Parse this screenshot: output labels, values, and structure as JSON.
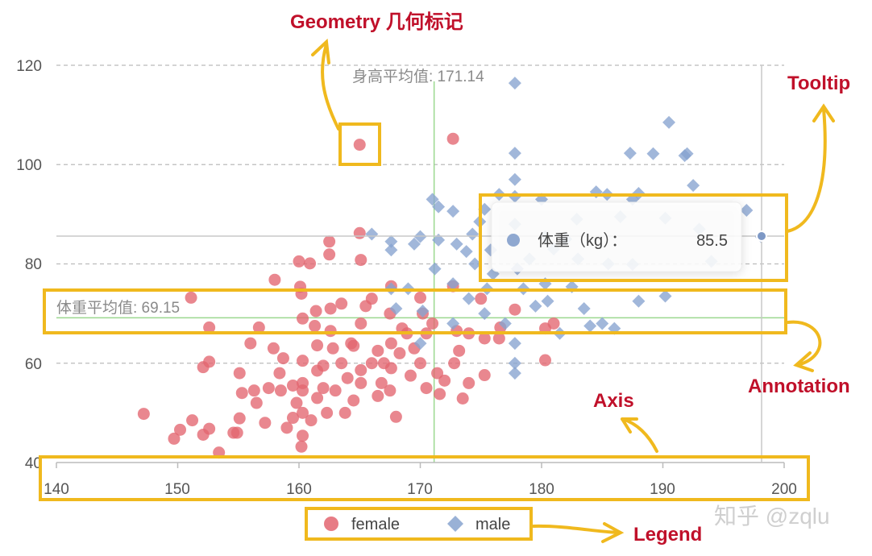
{
  "chart_data": {
    "type": "scatter",
    "xlim": [
      140,
      200
    ],
    "ylim": [
      40,
      120
    ],
    "x_ticks": [
      "140",
      "150",
      "160",
      "170",
      "180",
      "190",
      "200"
    ],
    "y_ticks": [
      "40",
      "60",
      "80",
      "100",
      "120"
    ],
    "grid": "horizontal dashed",
    "legend_position": "bottom",
    "series": [
      {
        "name": "female",
        "color": "#e36570",
        "marker": "circle",
        "points": [
          [
            147.2,
            49.8
          ],
          [
            149.7,
            44.8
          ],
          [
            150.2,
            46.6
          ],
          [
            151.2,
            48.5
          ],
          [
            151.1,
            73.2
          ],
          [
            152.1,
            59.2
          ],
          [
            152.1,
            45.6
          ],
          [
            152.6,
            46.8
          ],
          [
            152.6,
            67.2
          ],
          [
            152.6,
            60.3
          ],
          [
            153.4,
            42
          ],
          [
            154.6,
            46
          ],
          [
            155.1,
            58
          ],
          [
            155.3,
            54
          ],
          [
            155.1,
            48.9
          ],
          [
            154.9,
            46
          ],
          [
            156,
            64
          ],
          [
            156.3,
            54.5
          ],
          [
            156.5,
            52
          ],
          [
            156.7,
            67.2
          ],
          [
            157.2,
            48
          ],
          [
            157.5,
            55
          ],
          [
            157.9,
            63
          ],
          [
            158,
            76.8
          ],
          [
            158.4,
            58
          ],
          [
            158.5,
            54.5
          ],
          [
            158.7,
            61
          ],
          [
            159,
            47
          ],
          [
            159.5,
            55.5
          ],
          [
            159.5,
            49
          ],
          [
            159.8,
            52
          ],
          [
            160,
            80.5
          ],
          [
            160.1,
            75.4
          ],
          [
            160.2,
            74
          ],
          [
            160.2,
            43.2
          ],
          [
            160.3,
            45.4
          ],
          [
            160.3,
            50
          ],
          [
            160.3,
            54.5
          ],
          [
            160.3,
            56
          ],
          [
            160.3,
            69
          ],
          [
            160.3,
            60.5
          ],
          [
            160.9,
            80.1
          ],
          [
            161,
            48.5
          ],
          [
            161.3,
            67.5
          ],
          [
            161.4,
            70.5
          ],
          [
            161.5,
            63.6
          ],
          [
            161.5,
            58.5
          ],
          [
            161.5,
            53
          ],
          [
            162,
            55
          ],
          [
            162,
            59.5
          ],
          [
            162.3,
            50
          ],
          [
            162.5,
            84.5
          ],
          [
            162.5,
            81.9
          ],
          [
            162.6,
            66.5
          ],
          [
            162.6,
            71
          ],
          [
            162.8,
            63
          ],
          [
            163,
            54.5
          ],
          [
            163.5,
            60
          ],
          [
            163.5,
            72
          ],
          [
            163.8,
            50
          ],
          [
            164,
            57
          ],
          [
            164.3,
            64
          ],
          [
            164.5,
            63.5
          ],
          [
            164.5,
            52.5
          ],
          [
            165,
            104
          ],
          [
            165,
            86.2
          ],
          [
            165.1,
            80.8
          ],
          [
            165.1,
            68
          ],
          [
            165.1,
            58.6
          ],
          [
            165.1,
            56
          ],
          [
            165.5,
            71.5
          ],
          [
            166,
            73
          ],
          [
            166,
            60
          ],
          [
            166.5,
            62.5
          ],
          [
            166.5,
            53.4
          ],
          [
            166.8,
            56
          ],
          [
            167,
            60
          ],
          [
            167.5,
            70
          ],
          [
            167.5,
            54.5
          ],
          [
            167.6,
            75.5
          ],
          [
            167.6,
            64
          ],
          [
            167.6,
            59
          ],
          [
            168,
            49.2
          ],
          [
            168.3,
            62
          ],
          [
            168.5,
            67
          ],
          [
            168.9,
            66
          ],
          [
            169.2,
            57.5
          ],
          [
            169.5,
            63
          ],
          [
            170,
            60
          ],
          [
            170,
            73.2
          ],
          [
            170.2,
            70
          ],
          [
            170.5,
            66
          ],
          [
            170.5,
            55
          ],
          [
            171,
            68
          ],
          [
            171.4,
            58
          ],
          [
            171.6,
            53.8
          ],
          [
            172,
            56.5
          ],
          [
            172.7,
            105.2
          ],
          [
            172.7,
            75.5
          ],
          [
            172.8,
            60
          ],
          [
            173,
            66.5
          ],
          [
            173.2,
            62.5
          ],
          [
            173.5,
            52.9
          ],
          [
            174,
            56
          ],
          [
            174,
            66
          ],
          [
            175,
            73
          ],
          [
            175.3,
            57.6
          ],
          [
            175.3,
            65
          ],
          [
            176.5,
            65
          ],
          [
            176.6,
            67.2
          ],
          [
            177.8,
            70.8
          ],
          [
            180.3,
            67
          ],
          [
            180.3,
            60.6
          ],
          [
            181,
            68
          ]
        ]
      },
      {
        "name": "male",
        "color": "#87a3cf",
        "marker": "diamond",
        "points": [
          [
            166,
            86
          ],
          [
            167.6,
            75
          ],
          [
            167.6,
            84.5
          ],
          [
            167.6,
            82.8
          ],
          [
            168,
            71
          ],
          [
            169,
            75
          ],
          [
            169.5,
            84
          ],
          [
            170,
            85.5
          ],
          [
            170,
            64
          ],
          [
            170.2,
            70.5
          ],
          [
            171,
            93
          ],
          [
            171.2,
            79
          ],
          [
            171.5,
            91.5
          ],
          [
            171.5,
            84.8
          ],
          [
            172.7,
            90.6
          ],
          [
            172.7,
            76
          ],
          [
            172.7,
            68
          ],
          [
            173,
            84
          ],
          [
            173.8,
            82.5
          ],
          [
            174,
            73
          ],
          [
            174.3,
            86
          ],
          [
            174.5,
            80
          ],
          [
            174.9,
            88.5
          ],
          [
            175.3,
            70
          ],
          [
            175.3,
            91
          ],
          [
            175.5,
            75
          ],
          [
            175.8,
            82.8
          ],
          [
            176,
            78
          ],
          [
            176.5,
            94
          ],
          [
            177,
            68
          ],
          [
            177.8,
            116.4
          ],
          [
            177.8,
            102.3
          ],
          [
            177.8,
            97
          ],
          [
            177.8,
            93.6
          ],
          [
            177.8,
            88
          ],
          [
            177.8,
            64
          ],
          [
            177.8,
            60
          ],
          [
            177.8,
            58
          ],
          [
            178,
            79
          ],
          [
            178.5,
            75
          ],
          [
            179,
            81
          ],
          [
            179.5,
            71.5
          ],
          [
            180,
            93
          ],
          [
            180.3,
            85.5
          ],
          [
            180.3,
            76
          ],
          [
            180.5,
            72.5
          ],
          [
            181,
            83
          ],
          [
            181.5,
            66
          ],
          [
            182,
            85
          ],
          [
            182.5,
            75.4
          ],
          [
            182.9,
            89
          ],
          [
            183,
            81
          ],
          [
            183.5,
            71
          ],
          [
            184,
            67.5
          ],
          [
            184.5,
            94.5
          ],
          [
            185,
            68
          ],
          [
            185.4,
            94
          ],
          [
            185.5,
            80
          ],
          [
            186,
            67
          ],
          [
            186.5,
            89.5
          ],
          [
            187.5,
            93
          ],
          [
            187.3,
            102.3
          ],
          [
            187.5,
            79.9
          ],
          [
            188,
            72.5
          ],
          [
            188,
            94.2
          ],
          [
            189.2,
            102.2
          ],
          [
            190.2,
            89.2
          ],
          [
            190.2,
            73.5
          ],
          [
            190.5,
            108.5
          ],
          [
            191.8,
            101.8
          ],
          [
            192,
            102.2
          ],
          [
            192.5,
            95.8
          ],
          [
            193,
            87
          ],
          [
            194,
            80.5
          ],
          [
            196.9,
            90.8
          ],
          [
            198.1,
            85.5
          ]
        ]
      }
    ],
    "annotations": {
      "x_mean_label": "身高平均值: 171.14",
      "x_mean": 171.14,
      "y_mean_label": "体重平均值: 69.15",
      "y_mean": 69.15,
      "mean_line_color": "#9bd88f"
    },
    "crosshair": {
      "x": 198.1,
      "y": 85.5
    },
    "tooltip": {
      "label": "体重（kg）：",
      "value": "85.5"
    }
  },
  "callouts": {
    "geometry": "Geometry 几何标记",
    "tooltip": "Tooltip",
    "annotation": "Annotation",
    "axis": "Axis",
    "legend": "Legend",
    "color": "#c0102a",
    "box_color": "#f0b91e"
  },
  "legend": {
    "female": "female",
    "male": "male"
  },
  "watermark": "知乎 @zqlu"
}
